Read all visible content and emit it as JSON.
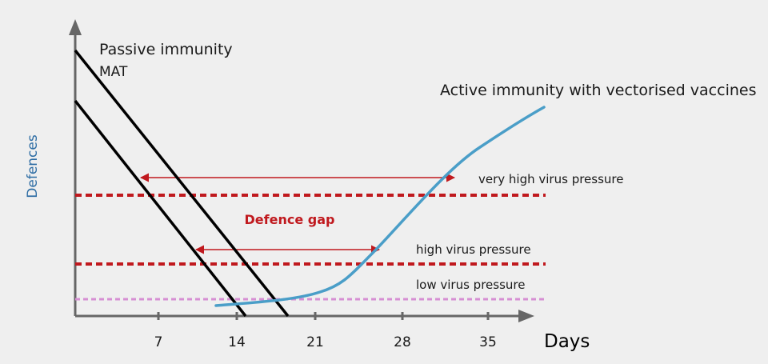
{
  "diagram": {
    "y_axis_label": "Defences",
    "x_axis_label": "Days",
    "x_ticks": [
      "7",
      "14",
      "21",
      "28",
      "35"
    ],
    "passive_label_line1": "Passive immunity",
    "passive_label_line2": "MAT",
    "active_label": "Active immunity with vectorised vaccines",
    "gap_label": "Defence gap",
    "pressure_levels": [
      {
        "label": "very high virus pressure",
        "color": "#c0191e"
      },
      {
        "label": "high virus pressure",
        "color": "#c0191e"
      },
      {
        "label": "low virus pressure",
        "color": "#d68fd3"
      }
    ],
    "colors": {
      "axis": "#666666",
      "passive": "#000000",
      "active": "#4a9ec8",
      "gap": "#c0191e",
      "y_label": "#2e6da4"
    }
  }
}
